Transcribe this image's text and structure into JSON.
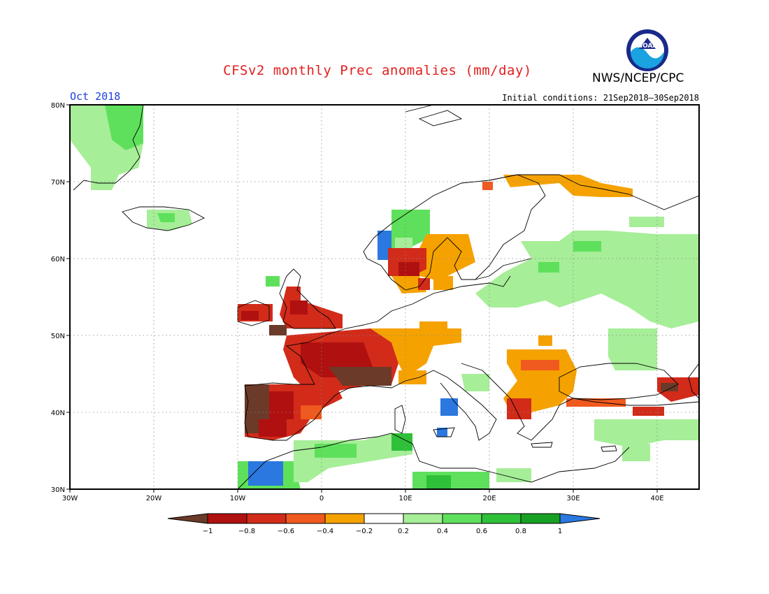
{
  "header": {
    "title": "CFSv2 monthly Prec anomalies (mm/day)",
    "agency": "NWS/NCEP/CPC",
    "month": "Oct 2018",
    "initial_conditions": "Initial conditions: 21Sep2018–30Sep2018",
    "logo_text": "NOAA"
  },
  "map": {
    "lon_range": [
      -30,
      45
    ],
    "lat_range": [
      30,
      80
    ],
    "grid": "dotted",
    "lat_ticks": [
      "80N",
      "70N",
      "60N",
      "50N",
      "40N",
      "30N"
    ],
    "lon_ticks": [
      "30W",
      "20W",
      "10W",
      "0",
      "10E",
      "20E",
      "30E",
      "40E"
    ]
  },
  "colorbar": {
    "labels": [
      "−1",
      "−0.8",
      "−0.6",
      "−0.4",
      "−0.2",
      "0.2",
      "0.4",
      "0.6",
      "0.8",
      "1"
    ],
    "colors": {
      "below_-1": "#6b3a28",
      "-1_-0.8": "#b01010",
      "-0.8_-0.6": "#d22b1a",
      "-0.6_-0.4": "#f05a1e",
      "-0.4_-0.2": "#f5a200",
      "-0.2_0.2": "#ffffff",
      "0.2_0.4": "#a6ee98",
      "0.4_0.6": "#5fe05c",
      "0.6_0.8": "#2fc03a",
      "0.8_1": "#18a024",
      "above_1": "#2a78e0"
    }
  }
}
